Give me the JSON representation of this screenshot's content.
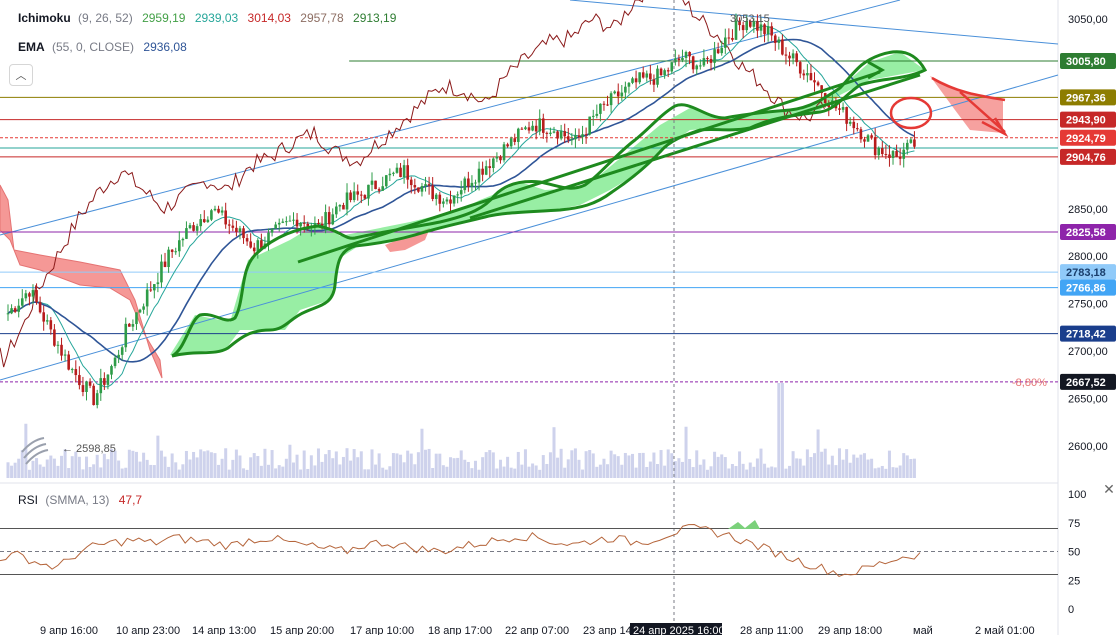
{
  "legends": {
    "ichimoku": {
      "name": "Ichimoku",
      "params": "(9, 26, 52)",
      "values": [
        "2959,19",
        "2939,03",
        "3014,03",
        "2957,78",
        "2913,19"
      ],
      "colors": [
        "#43a047",
        "#26a69a",
        "#c62828",
        "#8d6e63",
        "#2e7d32"
      ]
    },
    "ema": {
      "name": "EMA",
      "params": "(55, 0, CLOSE)",
      "value": "2936,08",
      "color": "#2f5597"
    },
    "rsi": {
      "name": "RSI",
      "params": "(SMMA, 13)",
      "value": "47,7",
      "color": "#c62828"
    }
  },
  "collapse_icon": "chevron-up-icon",
  "close_icon": "close-icon",
  "chart_data": {
    "type": "candlestick",
    "price_axis": {
      "ticks": [
        {
          "label": "3050,00",
          "value": 3050
        },
        {
          "label": "2850,00",
          "value": 2850
        },
        {
          "label": "2800,00",
          "value": 2800
        },
        {
          "label": "2750,00",
          "value": 2750
        },
        {
          "label": "2700,00",
          "value": 2700
        },
        {
          "label": "2650,00",
          "value": 2650
        },
        {
          "label": "2600,00",
          "value": 2600
        }
      ],
      "ylim": [
        2570,
        3070
      ]
    },
    "rsi_axis": {
      "ticks": [
        "100",
        "75",
        "50",
        "25",
        "0"
      ],
      "levels": [
        70,
        50,
        30
      ]
    },
    "time_axis": {
      "ticks": [
        "9 апр 16:00",
        "10 апр 23:00",
        "14 апр 13:00",
        "15 апр 20:00",
        "17 апр 10:00",
        "18 апр 17:00",
        "22 апр 07:00",
        "23 апр 14",
        "24 апр 2025 16:00",
        "28 апр 11:00",
        "29 апр 18:00",
        "май",
        "2 май 01:00"
      ],
      "crosshair_label": "24 апр 2025 16:00"
    },
    "price_labels": [
      {
        "label": "3005,80",
        "value": 3005.8,
        "color": "#2e7d32"
      },
      {
        "label": "2967,36",
        "value": 2967.36,
        "color": "#8d7d00"
      },
      {
        "label": "2943,90",
        "value": 2943.9,
        "color": "#c62828"
      },
      {
        "label": "2924,79",
        "value": 2924.79,
        "color": "#e53935"
      },
      {
        "label": "2904,76",
        "value": 2904.76,
        "color": "#c62828"
      },
      {
        "label": "2825,58",
        "value": 2825.58,
        "color": "#8e24aa"
      },
      {
        "label": "2783,18",
        "value": 2783.18,
        "color": "#90caf9"
      },
      {
        "label": "2766,86",
        "value": 2766.86,
        "color": "#42a5f5"
      },
      {
        "label": "2718,42",
        "value": 2718.42,
        "color": "#1a3e8c"
      },
      {
        "label": "2667,52",
        "value": 2667.52,
        "color": "#131722"
      }
    ],
    "horizontal_lines": [
      {
        "value": 3005.8,
        "color": "#2e7d32",
        "from": 0.33
      },
      {
        "value": 2967.36,
        "color": "#8d7d00",
        "from": 0
      },
      {
        "value": 2943.9,
        "color": "#c62828",
        "from": 0
      },
      {
        "value": 2924.79,
        "color": "#e53935",
        "from": 0,
        "dashed": true
      },
      {
        "value": 2914,
        "color": "#26a69a",
        "from": 0
      },
      {
        "value": 2904.76,
        "color": "#c62828",
        "from": 0
      },
      {
        "value": 2825.58,
        "color": "#8e24aa",
        "from": 0
      },
      {
        "value": 2783.18,
        "color": "#90caf9",
        "from": 0
      },
      {
        "value": 2766.86,
        "color": "#42a5f5",
        "from": 0
      },
      {
        "value": 2718.42,
        "color": "#1a3e8c",
        "from": 0
      },
      {
        "value": 2667.52,
        "color": "#8e24aa",
        "from": 0,
        "dashed": true
      }
    ],
    "annotations": {
      "percent_label": "-8,80%",
      "high_label": "3053,15",
      "low_label": "2598,85"
    },
    "price_path": [
      [
        0,
        2740
      ],
      [
        2,
        2765
      ],
      [
        4,
        2720
      ],
      [
        6,
        2680
      ],
      [
        8,
        2650
      ],
      [
        10,
        2690
      ],
      [
        11,
        2720
      ],
      [
        13,
        2760
      ],
      [
        15,
        2800
      ],
      [
        17,
        2830
      ],
      [
        19,
        2850
      ],
      [
        21,
        2830
      ],
      [
        23,
        2810
      ],
      [
        25,
        2825
      ],
      [
        27,
        2840
      ],
      [
        29,
        2830
      ],
      [
        31,
        2855
      ],
      [
        33,
        2865
      ],
      [
        35,
        2880
      ],
      [
        37,
        2890
      ],
      [
        39,
        2870
      ],
      [
        41,
        2860
      ],
      [
        43,
        2880
      ],
      [
        45,
        2900
      ],
      [
        47,
        2920
      ],
      [
        49,
        2940
      ],
      [
        51,
        2935
      ],
      [
        53,
        2920
      ],
      [
        55,
        2950
      ],
      [
        57,
        2970
      ],
      [
        59,
        2985
      ],
      [
        61,
        2990
      ],
      [
        63,
        3010
      ],
      [
        65,
        3000
      ],
      [
        67,
        3030
      ],
      [
        69,
        3050
      ],
      [
        71,
        3035
      ],
      [
        73,
        3010
      ],
      [
        75,
        2990
      ],
      [
        77,
        2960
      ],
      [
        79,
        2940
      ],
      [
        81,
        2915
      ],
      [
        83,
        2905
      ],
      [
        85,
        2920
      ]
    ],
    "rsi_values": [
      45,
      47,
      40,
      36,
      48,
      55,
      58,
      60,
      57,
      62,
      60,
      58,
      55,
      60,
      62,
      58,
      55,
      52,
      50,
      56,
      58,
      55,
      52,
      50,
      54,
      57,
      60,
      64,
      62,
      58,
      56,
      60,
      62,
      58,
      60,
      66,
      70,
      68,
      64,
      58,
      52,
      46,
      40,
      35,
      30,
      34,
      40,
      45,
      47.7
    ]
  }
}
